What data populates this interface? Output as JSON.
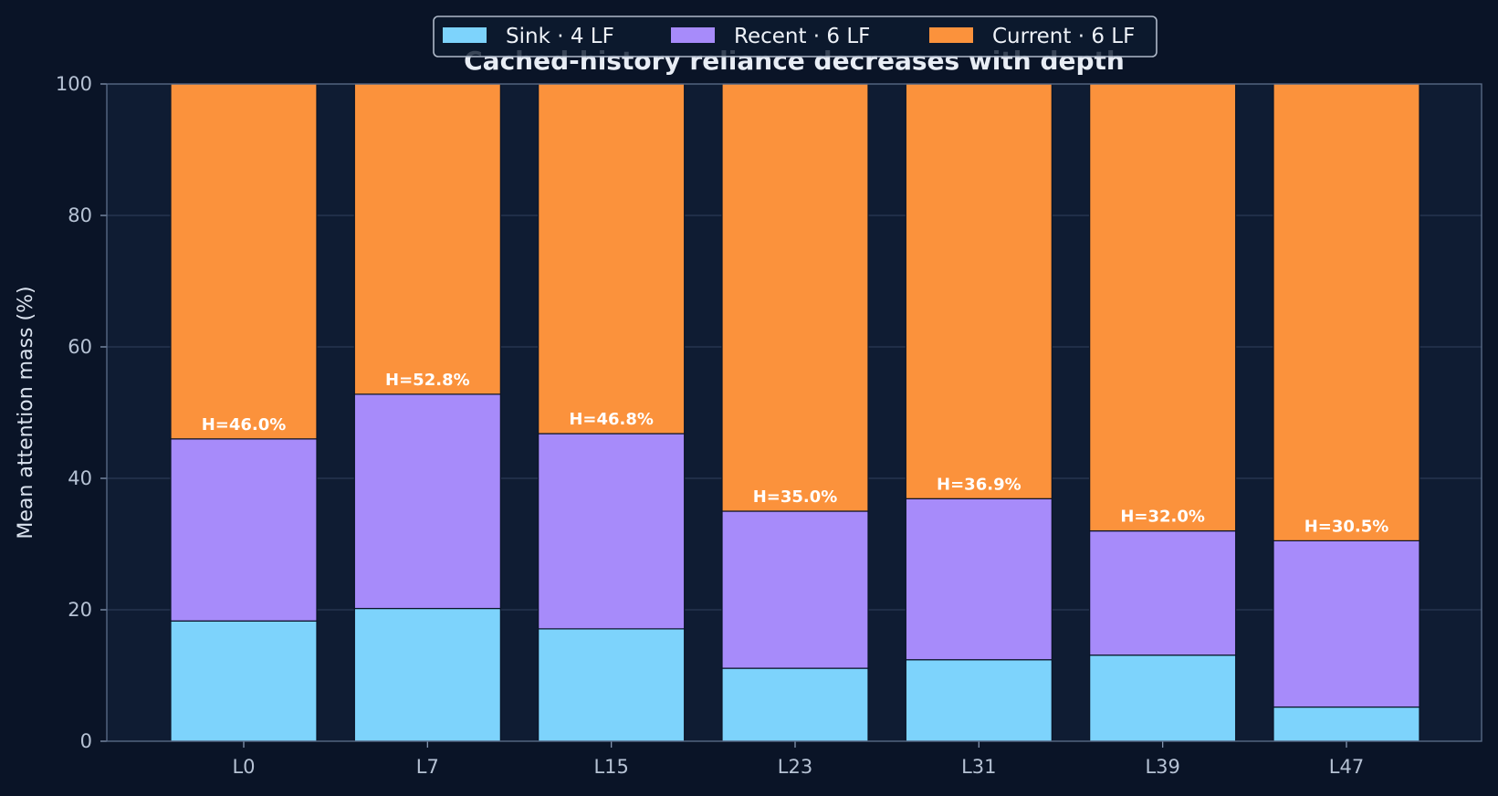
{
  "chart_data": {
    "type": "bar",
    "stacked": true,
    "title": "Cached-history reliance decreases with depth",
    "xlabel": "",
    "ylabel": "Mean attention mass (%)",
    "ylim": [
      0,
      100
    ],
    "yticks": [
      0,
      20,
      40,
      60,
      80,
      100
    ],
    "grid": true,
    "legend_position": "top-center",
    "categories": [
      "L0",
      "L7",
      "L15",
      "L23",
      "L31",
      "L39",
      "L47"
    ],
    "series": [
      {
        "name": "Sink · 4 LF",
        "color": "#7dd3fc",
        "values": [
          18.3,
          20.2,
          17.1,
          11.1,
          12.4,
          13.1,
          5.2
        ]
      },
      {
        "name": "Recent · 6 LF",
        "color": "#a78bfa",
        "values": [
          27.7,
          32.6,
          29.7,
          23.9,
          24.5,
          18.9,
          25.3
        ]
      },
      {
        "name": "Current · 6 LF",
        "color": "#fb923c",
        "values": [
          54.0,
          47.2,
          53.2,
          65.0,
          63.1,
          68.0,
          69.5
        ]
      }
    ],
    "annotations": [
      "H=46.0%",
      "H=52.8%",
      "H=46.8%",
      "H=35.0%",
      "H=36.9%",
      "H=32.0%",
      "H=30.5%"
    ]
  }
}
